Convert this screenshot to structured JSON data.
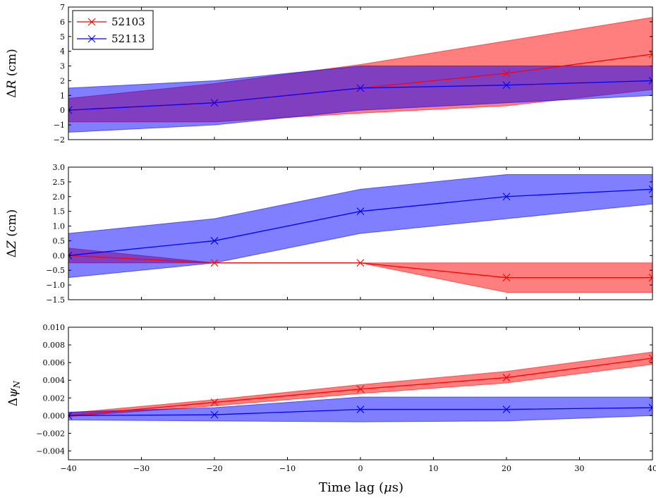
{
  "chart_data": [
    {
      "type": "line",
      "ylabel": "ΔR (cm)",
      "ylabel_math": {
        "delta": "Δ",
        "var": "R",
        "unit": " (cm)"
      },
      "xlim": [
        -40,
        40
      ],
      "ylim": [
        -2,
        7
      ],
      "yticks": [
        -2,
        -1,
        0,
        1,
        2,
        3,
        4,
        5,
        6,
        7
      ],
      "ytick_labels": [
        "−2",
        "−1",
        "0",
        "1",
        "2",
        "3",
        "4",
        "5",
        "6",
        "7"
      ],
      "legend": {
        "location": "top-left",
        "entries": [
          "52103",
          "52113"
        ]
      },
      "x": [
        -40,
        -20,
        0,
        20,
        40
      ],
      "series": [
        {
          "name": "52103",
          "color": "#ff0000",
          "fill": "#ff0000",
          "values": [
            0.0,
            0.5,
            1.5,
            2.5,
            3.8
          ],
          "lower": [
            -0.8,
            -0.8,
            -0.2,
            0.3,
            1.4
          ],
          "upper": [
            0.8,
            1.8,
            3.1,
            4.7,
            6.3
          ]
        },
        {
          "name": "52113",
          "color": "#0000ff",
          "fill": "#0000ff",
          "values": [
            0.0,
            0.5,
            1.5,
            1.7,
            2.0
          ],
          "lower": [
            -1.5,
            -1.0,
            0.0,
            0.5,
            1.0
          ],
          "upper": [
            1.5,
            2.0,
            3.0,
            3.0,
            3.0
          ]
        }
      ]
    },
    {
      "type": "line",
      "ylabel": "ΔZ (cm)",
      "ylabel_math": {
        "delta": "Δ",
        "var": "Z",
        "unit": " (cm)"
      },
      "xlim": [
        -40,
        40
      ],
      "ylim": [
        -1.5,
        3.0
      ],
      "yticks": [
        -1.5,
        -1.0,
        -0.5,
        0.0,
        0.5,
        1.0,
        1.5,
        2.0,
        2.5,
        3.0
      ],
      "ytick_labels": [
        "−1.5",
        "−1.0",
        "−0.5",
        "0.0",
        "0.5",
        "1.0",
        "1.5",
        "2.0",
        "2.5",
        "3.0"
      ],
      "x": [
        -40,
        -20,
        0,
        20,
        40
      ],
      "series": [
        {
          "name": "52103",
          "color": "#ff0000",
          "fill": "#ff0000",
          "values": [
            0.0,
            -0.25,
            -0.25,
            -0.75,
            -0.75
          ],
          "lower": [
            -0.25,
            -0.25,
            -0.25,
            -1.25,
            -1.25
          ],
          "upper": [
            0.25,
            -0.25,
            -0.25,
            -0.25,
            -0.25
          ]
        },
        {
          "name": "52113",
          "color": "#0000ff",
          "fill": "#0000ff",
          "values": [
            0.0,
            0.5,
            1.5,
            2.0,
            2.25
          ],
          "lower": [
            -0.75,
            -0.25,
            0.75,
            1.25,
            1.75
          ],
          "upper": [
            0.75,
            1.25,
            2.25,
            2.75,
            2.75
          ]
        }
      ]
    },
    {
      "type": "line",
      "ylabel": "Δψ_N",
      "ylabel_math": {
        "delta": "Δ",
        "var": "ψ",
        "sub": "N",
        "unit": ""
      },
      "xlim": [
        -40,
        40
      ],
      "ylim": [
        -0.005,
        0.01
      ],
      "yticks": [
        -0.004,
        -0.002,
        0.0,
        0.002,
        0.004,
        0.006,
        0.008,
        0.01
      ],
      "ytick_labels": [
        "−0.004",
        "−0.002",
        "0.000",
        "0.002",
        "0.004",
        "0.006",
        "0.008",
        "0.010"
      ],
      "x": [
        -40,
        -20,
        0,
        20,
        40
      ],
      "series": [
        {
          "name": "52103",
          "color": "#ff0000",
          "fill": "#ff0000",
          "values": [
            0.0,
            0.0015,
            0.003,
            0.0043,
            0.0065
          ],
          "lower": [
            -0.0001,
            0.0011,
            0.0025,
            0.0037,
            0.0058
          ],
          "upper": [
            0.0003,
            0.0018,
            0.0035,
            0.005,
            0.0072
          ]
        },
        {
          "name": "52113",
          "color": "#0000ff",
          "fill": "#0000ff",
          "values": [
            0.0,
            0.0001,
            0.0007,
            0.0007,
            0.0009
          ],
          "lower": [
            -0.0005,
            -0.0006,
            -0.0007,
            -0.0006,
            0.0
          ],
          "upper": [
            0.0004,
            0.0009,
            0.0021,
            0.0021,
            0.0021
          ]
        }
      ]
    }
  ],
  "xaxis": {
    "label": "Time lag (μs)",
    "label_parts": {
      "text": "Time lag (",
      "mu": "μ",
      "unit": "s)"
    },
    "ticks": [
      -40,
      -30,
      -20,
      -10,
      0,
      10,
      20,
      30,
      40
    ],
    "tick_labels": [
      "−40",
      "−30",
      "−20",
      "−10",
      "0",
      "10",
      "20",
      "30",
      "40"
    ]
  }
}
